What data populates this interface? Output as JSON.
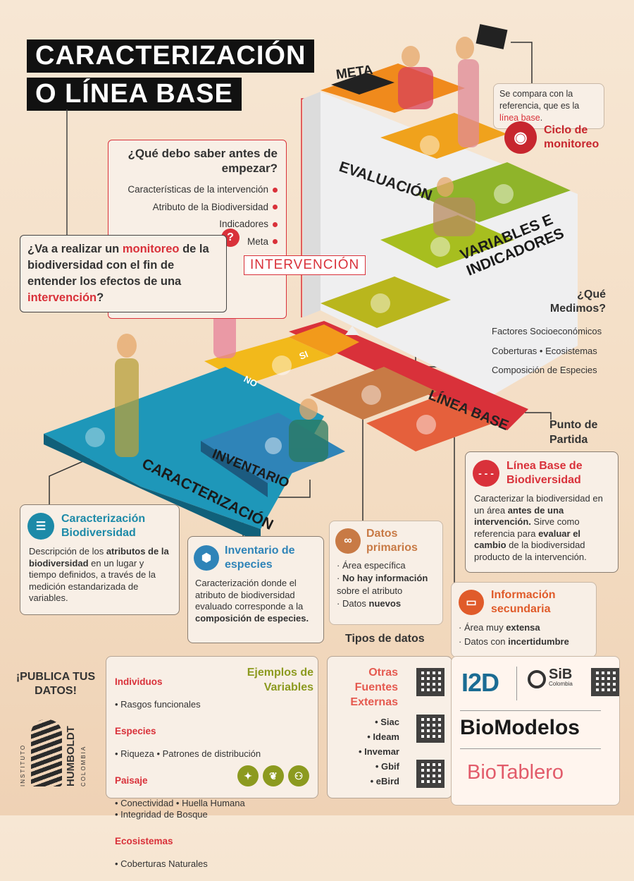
{
  "title": {
    "line1": "CARACTERIZACIÓN",
    "line2": "O LÍNEA BASE"
  },
  "question_box": {
    "heading": "¿Qué debo saber antes de empezar?",
    "items": [
      "Características de la intervención",
      "Atributo de la Biodiversidad",
      "Indicadores",
      "Meta"
    ]
  },
  "main_question": {
    "pre": "¿Va a realizar un ",
    "hl1": "monitoreo",
    "mid": " de la biodiversidad con el fin de entender los efectos de una ",
    "hl2": "intervención",
    "post": "?"
  },
  "stairs": {
    "meta": "META",
    "evaluacion": "EVALUACIÓN",
    "variables": "VARIABLES E INDICADORES",
    "intervencion": "INTERVENCIÓN",
    "linea_base": "LÍNEA BASE",
    "inventario": "INVENTARIO",
    "caracterizacion": "CARACTERIZACIÓN",
    "si": "SI",
    "no": "NO"
  },
  "compare_note": {
    "pre": "Se compara con la referencia, que es la ",
    "hl": "línea base",
    "post": "."
  },
  "ciclo": "Ciclo de monitoreo",
  "que_medimos": {
    "heading": "¿Qué Medimos?",
    "items": [
      "Factores Socioeconómicos",
      "Coberturas • Ecosistemas",
      "Composición de Especies"
    ]
  },
  "punto_partida": "Punto de Partida",
  "linea_base_card": {
    "title": "Línea Base de Biodiversidad",
    "p1": "Caracterizar la biodiversidad en un área ",
    "b1": "antes de una intervención.",
    "p2": " Sirve como referencia para ",
    "b2": "evaluar el cambio",
    "p3": " de la biodiversidad producto de la intervención."
  },
  "caracterizacion_card": {
    "title": "Caracterización Biodiversidad",
    "p1": "Descripción de los ",
    "b1": "atributos de la biodiversidad",
    "p2": " en un lugar y tiempo definidos, a través de la medición estandarizada de variables."
  },
  "inventario_card": {
    "title": "Inventario de especies",
    "p1": "Caracterización donde el atributo de biodiversidad evaluado corresponde a la ",
    "b1": "composición de especies."
  },
  "datos_primarios": {
    "title": "Datos primarios",
    "items": [
      {
        "pre": "Área específica",
        "b": ""
      },
      {
        "pre": "",
        "b": "No hay información",
        "post": " sobre el atributo"
      },
      {
        "pre": "Datos ",
        "b": "nuevos"
      }
    ]
  },
  "info_secundaria": {
    "title": "Información secundaria",
    "items": [
      {
        "pre": "Área muy ",
        "b": "extensa"
      },
      {
        "pre": "Datos con ",
        "b": "incertidumbre"
      }
    ]
  },
  "tipos_datos": "Tipos de datos",
  "publica": "¡PUBLICA TUS DATOS!",
  "humboldt": {
    "top": "INSTITUTO",
    "main": "HUMBOLDT",
    "sub": "COLOMBIA"
  },
  "ejemplos": {
    "heading": "Ejemplos de Variables",
    "groups": [
      {
        "name": "Individuos",
        "items": "• Rasgos funcionales"
      },
      {
        "name": "Especies",
        "items": "• Riqueza  • Patrones de distribución"
      },
      {
        "name": "Paisaje",
        "items": "• Conectividad  • Huella Humana\n• Integridad de Bosque"
      },
      {
        "name": "Ecosistemas",
        "items": "• Coberturas Naturales"
      }
    ]
  },
  "otras_fuentes": {
    "heading": "Otras Fuentes Externas",
    "items": [
      "• Siac",
      "• Ideam",
      "• Invemar",
      "• Gbif",
      "• eBird"
    ]
  },
  "platforms": {
    "i2d": "I2D",
    "sib": "SiB",
    "sib_sub": "Colombia",
    "biomodelos": "BioModelos",
    "biotablero": "BioTablero"
  },
  "colors": {
    "red": "#d9313a",
    "teal": "#1d8aa8",
    "orange": "#e05b2a",
    "olive": "#8c9a1f",
    "green": "#8fb42a",
    "yellow": "#f0b21a"
  }
}
